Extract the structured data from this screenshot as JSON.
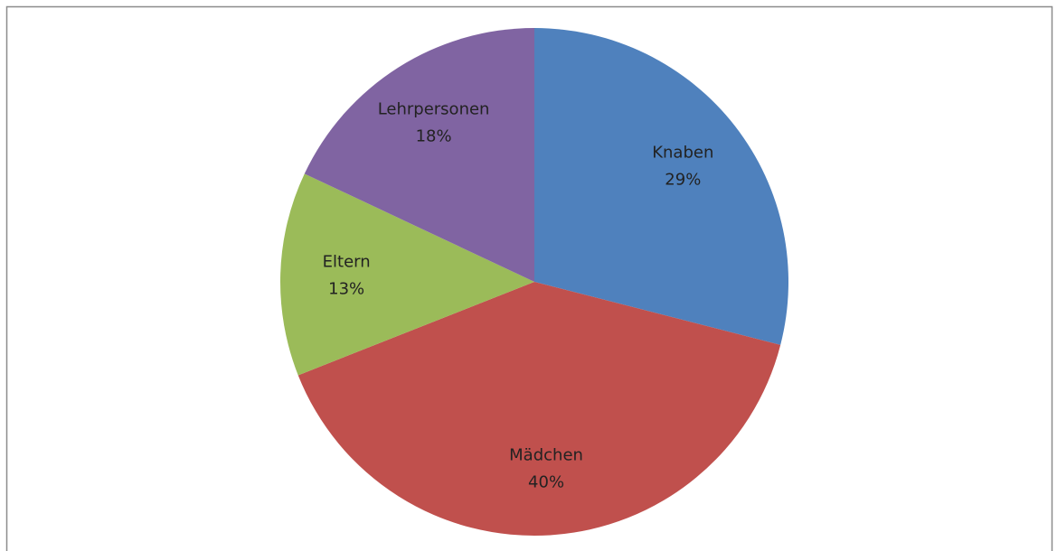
{
  "chart_data": {
    "type": "pie",
    "categories": [
      "Knaben",
      "Mädchen",
      "Eltern",
      "Lehrpersonen"
    ],
    "values": [
      29,
      40,
      13,
      18
    ],
    "value_labels": [
      "29%",
      "40%",
      "13%",
      "18%"
    ],
    "colors": [
      "#4f81bd",
      "#c0504d",
      "#9bbb59",
      "#8064a2"
    ]
  }
}
